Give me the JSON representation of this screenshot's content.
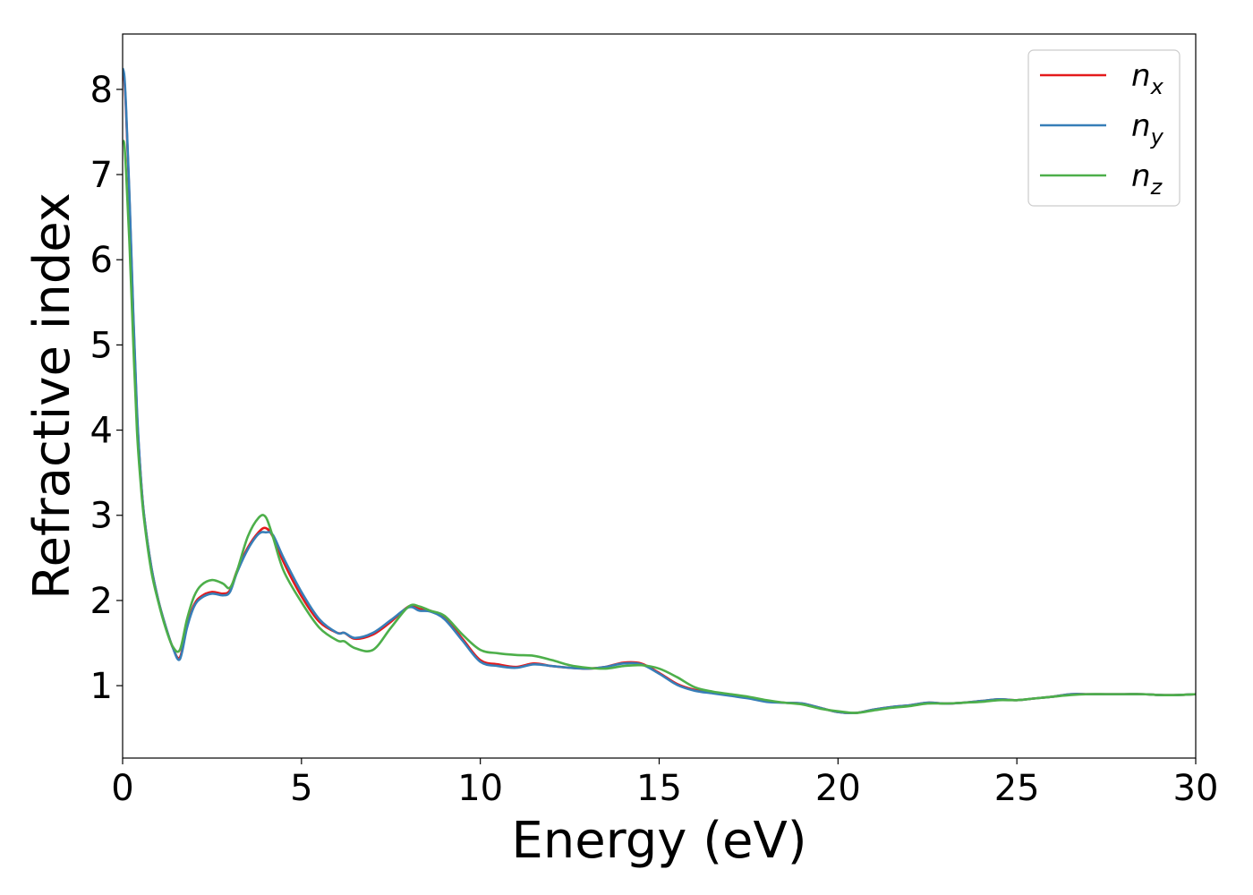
{
  "chart_data": {
    "type": "line",
    "xlabel": "Energy (eV)",
    "ylabel": "Refractive index",
    "xlim": [
      0,
      30
    ],
    "ylim": [
      0.15,
      8.65
    ],
    "xticks": [
      0,
      5,
      10,
      15,
      20,
      25,
      30
    ],
    "yticks": [
      1,
      2,
      3,
      4,
      5,
      6,
      7,
      8
    ],
    "grid": false,
    "legend_position": "top-right",
    "series": [
      {
        "name": "n",
        "subscript": "x",
        "color": "#e41a1c",
        "x": [
          0,
          0.05,
          0.1,
          0.2,
          0.3,
          0.4,
          0.5,
          0.6,
          0.8,
          1.0,
          1.2,
          1.4,
          1.6,
          1.8,
          2.0,
          2.2,
          2.5,
          2.8,
          3.0,
          3.2,
          3.5,
          3.8,
          4.0,
          4.2,
          4.5,
          5.0,
          5.5,
          6.0,
          6.2,
          6.5,
          7.0,
          7.5,
          8.0,
          8.3,
          8.6,
          9.0,
          9.5,
          10.0,
          10.5,
          11.0,
          11.5,
          12.0,
          12.5,
          13.0,
          13.5,
          14.0,
          14.5,
          15.0,
          15.5,
          16.0,
          16.5,
          17.0,
          17.5,
          18.0,
          18.5,
          19.0,
          19.5,
          20.0,
          20.5,
          21.0,
          21.5,
          22.0,
          22.5,
          23.0,
          23.5,
          24.0,
          24.5,
          25.0,
          25.5,
          26.0,
          26.5,
          27.0,
          27.5,
          28.0,
          28.5,
          29.0,
          29.5,
          30.0
        ],
        "values": [
          8.2,
          8.1,
          7.7,
          6.6,
          5.3,
          4.2,
          3.5,
          3.0,
          2.4,
          2.0,
          1.7,
          1.45,
          1.33,
          1.7,
          1.95,
          2.05,
          2.1,
          2.08,
          2.12,
          2.35,
          2.62,
          2.8,
          2.85,
          2.75,
          2.45,
          2.05,
          1.75,
          1.62,
          1.62,
          1.55,
          1.6,
          1.75,
          1.93,
          1.9,
          1.88,
          1.8,
          1.55,
          1.3,
          1.25,
          1.22,
          1.26,
          1.23,
          1.21,
          1.2,
          1.22,
          1.27,
          1.26,
          1.15,
          1.02,
          0.95,
          0.92,
          0.89,
          0.86,
          0.82,
          0.8,
          0.79,
          0.74,
          0.69,
          0.68,
          0.72,
          0.75,
          0.77,
          0.8,
          0.79,
          0.8,
          0.82,
          0.84,
          0.83,
          0.85,
          0.87,
          0.9,
          0.9,
          0.9,
          0.9,
          0.9,
          0.89,
          0.89,
          0.9
        ]
      },
      {
        "name": "n",
        "subscript": "y",
        "color": "#377eb8",
        "x": [
          0,
          0.05,
          0.1,
          0.2,
          0.3,
          0.4,
          0.5,
          0.6,
          0.8,
          1.0,
          1.2,
          1.4,
          1.6,
          1.8,
          2.0,
          2.2,
          2.5,
          2.8,
          3.0,
          3.2,
          3.5,
          3.8,
          4.0,
          4.2,
          4.5,
          5.0,
          5.5,
          6.0,
          6.2,
          6.5,
          7.0,
          7.5,
          8.0,
          8.3,
          8.6,
          9.0,
          9.5,
          10.0,
          10.5,
          11.0,
          11.5,
          12.0,
          12.5,
          13.0,
          13.5,
          14.0,
          14.5,
          15.0,
          15.5,
          16.0,
          16.5,
          17.0,
          17.5,
          18.0,
          18.5,
          19.0,
          19.5,
          20.0,
          20.5,
          21.0,
          21.5,
          22.0,
          22.5,
          23.0,
          23.5,
          24.0,
          24.5,
          25.0,
          25.5,
          26.0,
          26.5,
          27.0,
          27.5,
          28.0,
          28.5,
          29.0,
          29.5,
          30.0
        ],
        "values": [
          8.25,
          8.15,
          7.75,
          6.65,
          5.35,
          4.25,
          3.5,
          3.0,
          2.4,
          2.0,
          1.7,
          1.45,
          1.31,
          1.68,
          1.93,
          2.03,
          2.08,
          2.06,
          2.1,
          2.33,
          2.6,
          2.78,
          2.8,
          2.77,
          2.5,
          2.1,
          1.78,
          1.62,
          1.62,
          1.56,
          1.62,
          1.77,
          1.92,
          1.88,
          1.87,
          1.78,
          1.53,
          1.28,
          1.23,
          1.21,
          1.25,
          1.23,
          1.21,
          1.2,
          1.22,
          1.26,
          1.25,
          1.14,
          1.01,
          0.94,
          0.91,
          0.88,
          0.85,
          0.81,
          0.8,
          0.79,
          0.74,
          0.69,
          0.68,
          0.72,
          0.75,
          0.77,
          0.8,
          0.79,
          0.8,
          0.82,
          0.84,
          0.83,
          0.85,
          0.87,
          0.9,
          0.9,
          0.9,
          0.9,
          0.9,
          0.89,
          0.89,
          0.9
        ]
      },
      {
        "name": "n",
        "subscript": "z",
        "color": "#4daf4a",
        "x": [
          0,
          0.05,
          0.1,
          0.2,
          0.3,
          0.4,
          0.5,
          0.6,
          0.8,
          1.0,
          1.2,
          1.4,
          1.6,
          1.8,
          2.0,
          2.2,
          2.5,
          2.8,
          3.0,
          3.2,
          3.5,
          3.8,
          4.0,
          4.2,
          4.5,
          5.0,
          5.5,
          6.0,
          6.2,
          6.5,
          7.0,
          7.5,
          8.0,
          8.3,
          8.6,
          9.0,
          9.5,
          10.0,
          10.5,
          11.0,
          11.5,
          12.0,
          12.5,
          13.0,
          13.5,
          14.0,
          14.5,
          15.0,
          15.5,
          16.0,
          16.5,
          17.0,
          17.5,
          18.0,
          18.5,
          19.0,
          19.5,
          20.0,
          20.5,
          21.0,
          21.5,
          22.0,
          22.5,
          23.0,
          23.5,
          24.0,
          24.5,
          25.0,
          25.5,
          26.0,
          26.5,
          27.0,
          27.5,
          28.0,
          28.5,
          29.0,
          29.5,
          30.0
        ],
        "values": [
          7.4,
          7.35,
          7.0,
          6.1,
          5.0,
          4.0,
          3.4,
          2.95,
          2.35,
          1.98,
          1.68,
          1.46,
          1.42,
          1.78,
          2.05,
          2.18,
          2.24,
          2.2,
          2.15,
          2.35,
          2.75,
          2.97,
          2.98,
          2.75,
          2.35,
          1.98,
          1.68,
          1.53,
          1.52,
          1.44,
          1.42,
          1.68,
          1.93,
          1.93,
          1.88,
          1.82,
          1.6,
          1.42,
          1.38,
          1.36,
          1.35,
          1.3,
          1.24,
          1.21,
          1.2,
          1.23,
          1.24,
          1.2,
          1.1,
          0.98,
          0.93,
          0.9,
          0.87,
          0.83,
          0.8,
          0.78,
          0.73,
          0.7,
          0.68,
          0.71,
          0.74,
          0.76,
          0.79,
          0.79,
          0.8,
          0.81,
          0.83,
          0.83,
          0.85,
          0.87,
          0.89,
          0.9,
          0.9,
          0.9,
          0.9,
          0.89,
          0.89,
          0.9
        ]
      }
    ]
  }
}
